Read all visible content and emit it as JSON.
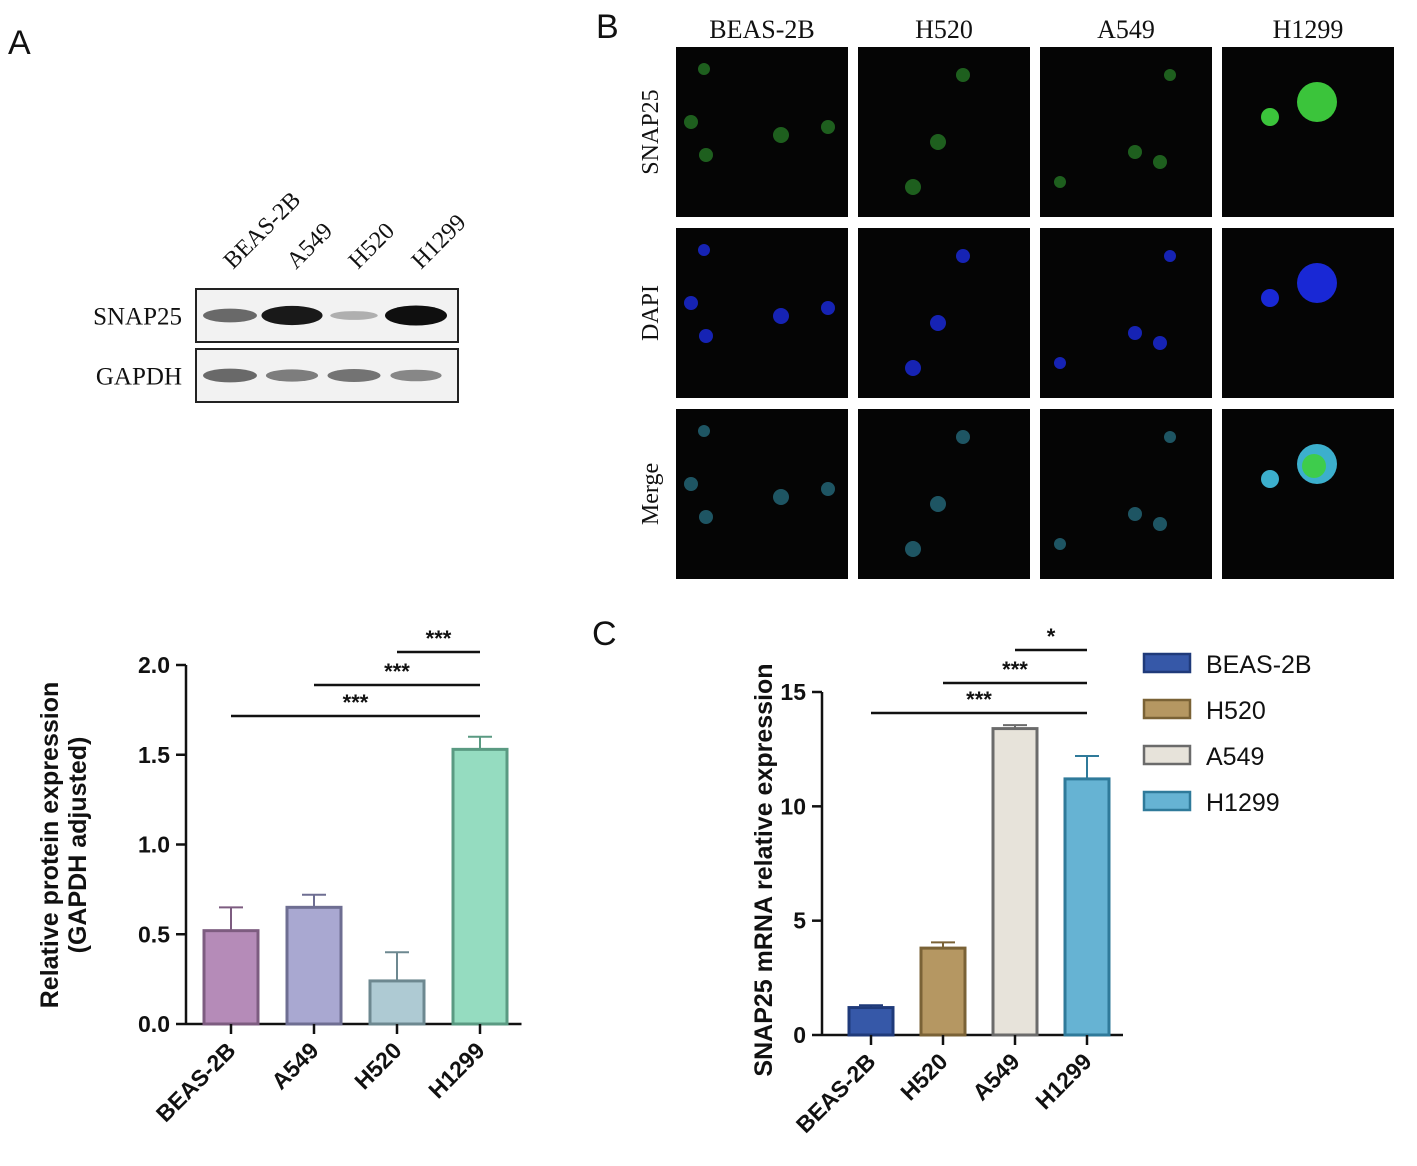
{
  "panels": {
    "a": "A",
    "b": "B",
    "c": "C"
  },
  "western_blot": {
    "lanes": [
      "BEAS-2B",
      "A549",
      "H520",
      "H1299"
    ],
    "rows": [
      {
        "label": "SNAP25",
        "intensities": [
          0.55,
          0.95,
          0.2,
          1.0
        ]
      },
      {
        "label": "GAPDH",
        "intensities": [
          0.55,
          0.45,
          0.5,
          0.4
        ]
      }
    ]
  },
  "if_grid": {
    "columns": [
      "BEAS-2B",
      "H520",
      "A549",
      "H1299"
    ],
    "rows": [
      "SNAP25",
      "DAPI",
      "Merge"
    ],
    "colors": {
      "SNAP25": "#3ecf3e",
      "DAPI": "#1a2ae0",
      "Merge": "#3fb8d8"
    }
  },
  "chart_data": [
    {
      "type": "bar",
      "panel": "A",
      "categories": [
        "BEAS-2B",
        "A549",
        "H520",
        "H1299"
      ],
      "values": [
        0.52,
        0.65,
        0.24,
        1.53
      ],
      "errors": [
        0.13,
        0.07,
        0.16,
        0.07
      ],
      "colors": [
        "#b58bb8",
        "#a9a8d1",
        "#aecad3",
        "#95dcc0"
      ],
      "edge_colors": [
        "#7d5c80",
        "#6e6e92",
        "#6d8890",
        "#5a9a82"
      ],
      "ylabel_lines": [
        "Relative protein expression",
        "(GAPDH adjusted)"
      ],
      "xlabel": "",
      "ylim": [
        0,
        2.0
      ],
      "yticks": [
        "0.0",
        "0.5",
        "1.0",
        "1.5",
        "2.0"
      ],
      "significance": [
        {
          "from": "H520",
          "to": "H1299",
          "label": "***"
        },
        {
          "from": "A549",
          "to": "H1299",
          "label": "***"
        },
        {
          "from": "BEAS-2B",
          "to": "H1299",
          "label": "***"
        }
      ]
    },
    {
      "type": "bar",
      "panel": "C",
      "categories": [
        "BEAS-2B",
        "H520",
        "A549",
        "H1299"
      ],
      "values": [
        1.2,
        3.8,
        13.4,
        11.2
      ],
      "errors": [
        0.1,
        0.25,
        0.15,
        1.0
      ],
      "colors": [
        "#3658a8",
        "#b59762",
        "#e7e3da",
        "#66b3d3"
      ],
      "edge_colors": [
        "#1f3a7a",
        "#7a6236",
        "#6b6b6b",
        "#2f7a9a"
      ],
      "ylabel": "SNAP25 mRNA relative expression",
      "xlabel": "",
      "ylim": [
        0,
        15
      ],
      "yticks": [
        "0",
        "5",
        "10",
        "15"
      ],
      "legend": [
        "BEAS-2B",
        "H520",
        "A549",
        "H1299"
      ],
      "legend_position": "right",
      "significance": [
        {
          "from": "A549",
          "to": "H1299",
          "label": "*"
        },
        {
          "from": "H520",
          "to": "H1299",
          "label": "***"
        },
        {
          "from": "BEAS-2B",
          "to": "H1299",
          "label": "***"
        }
      ]
    }
  ]
}
